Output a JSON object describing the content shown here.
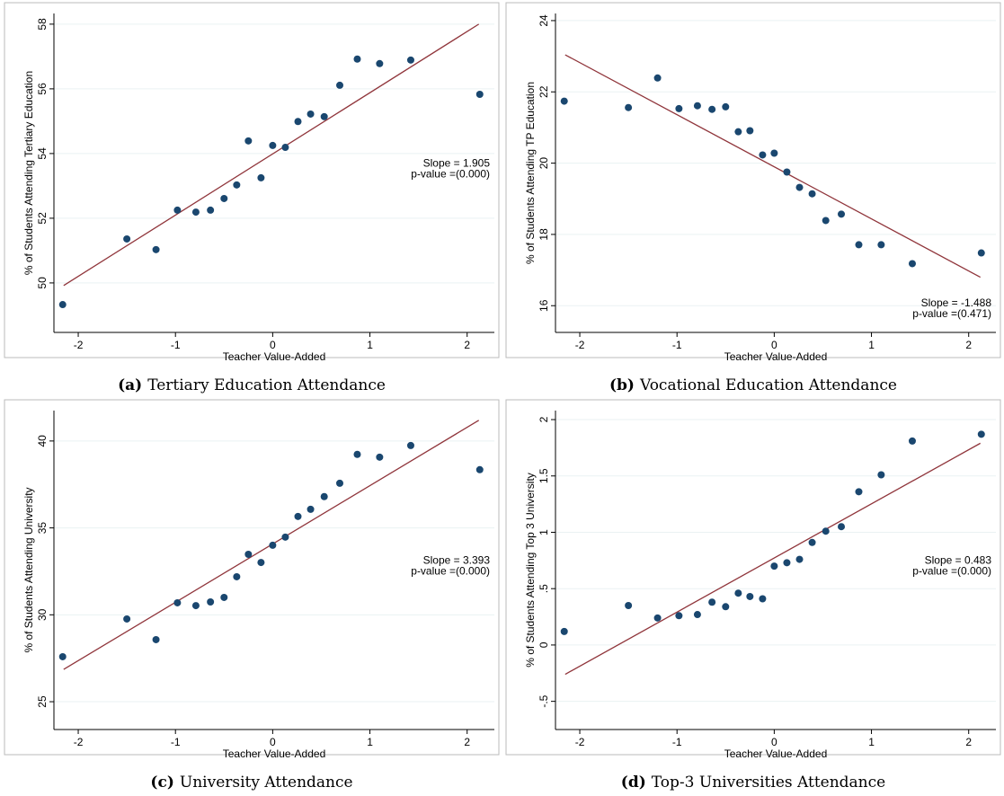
{
  "chart_data": [
    {
      "type": "scatter",
      "caption_label": "(a)",
      "caption": "Tertiary Education Attendance",
      "xlabel": "Teacher Value-Added",
      "ylabel": "% of Students Attending Tertiary Education",
      "x": [
        -2.16,
        -1.5,
        -1.2,
        -0.98,
        -0.79,
        -0.64,
        -0.5,
        -0.37,
        -0.25,
        -0.12,
        0.0,
        0.13,
        0.26,
        0.39,
        0.53,
        0.69,
        0.87,
        1.1,
        1.42,
        2.13
      ],
      "y": [
        49.33,
        51.36,
        51.03,
        52.25,
        52.19,
        52.25,
        52.61,
        53.03,
        54.39,
        53.25,
        54.25,
        54.19,
        54.99,
        55.22,
        55.14,
        56.11,
        56.92,
        56.78,
        56.89,
        55.83
      ],
      "color": "#1a476f",
      "fit_line": {
        "x": [
          -2.15,
          2.12
        ],
        "y": [
          49.92,
          58.0
        ],
        "color": "#90353b"
      },
      "annotations": [
        "Slope = 1.905",
        "p-value =(0.000)"
      ],
      "annotation_position": "middle",
      "xlim": [
        -2.25,
        2.28
      ],
      "ylim": [
        48.47,
        58.33
      ],
      "xticks": [
        -2,
        -1,
        0,
        1,
        2
      ],
      "yticks": [
        50,
        52,
        54,
        56,
        58
      ],
      "grid": true
    },
    {
      "type": "scatter",
      "caption_label": "(b)",
      "caption": "Vocational Education Attendance",
      "xlabel": "Teacher Value-Added",
      "ylabel": "% of Students Attending TP Education",
      "x": [
        -2.16,
        -1.5,
        -1.2,
        -0.98,
        -0.79,
        -0.64,
        -0.5,
        -0.37,
        -0.25,
        -0.12,
        0.0,
        0.13,
        0.26,
        0.39,
        0.53,
        0.69,
        0.87,
        1.1,
        1.42,
        2.13
      ],
      "y": [
        21.74,
        21.56,
        22.39,
        21.53,
        21.61,
        21.51,
        21.58,
        20.88,
        20.91,
        20.23,
        20.28,
        19.75,
        19.32,
        19.14,
        18.39,
        18.57,
        17.71,
        17.71,
        17.18,
        17.48
      ],
      "color": "#1a476f",
      "fit_line": {
        "x": [
          -2.15,
          2.12
        ],
        "y": [
          23.04,
          16.8
        ],
        "color": "#90353b"
      },
      "annotations": [
        "Slope = -1.488",
        "p-value =(0.471)"
      ],
      "annotation_position": "bottom",
      "xlim": [
        -2.25,
        2.28
      ],
      "ylim": [
        15.25,
        24.2
      ],
      "xticks": [
        -2,
        -1,
        0,
        1,
        2
      ],
      "yticks": [
        16,
        18,
        20,
        22,
        24
      ],
      "grid": true
    },
    {
      "type": "scatter",
      "caption_label": "(c)",
      "caption": "University Attendance",
      "xlabel": "Teacher Value-Added",
      "ylabel": "% of Students Attending University",
      "x": [
        -2.16,
        -1.5,
        -1.2,
        -0.98,
        -0.79,
        -0.64,
        -0.5,
        -0.37,
        -0.25,
        -0.12,
        0.0,
        0.13,
        0.26,
        0.39,
        0.53,
        0.69,
        0.87,
        1.1,
        1.42,
        2.13
      ],
      "y": [
        27.59,
        29.76,
        28.57,
        30.69,
        30.53,
        30.74,
        31.0,
        32.19,
        33.48,
        33.01,
        34.0,
        34.47,
        35.66,
        36.07,
        36.8,
        37.57,
        39.23,
        39.07,
        39.74,
        38.35
      ],
      "color": "#1a476f",
      "fit_line": {
        "x": [
          -2.15,
          2.12
        ],
        "y": [
          26.86,
          41.19
        ],
        "color": "#90353b"
      },
      "annotations": [
        "Slope = 3.393",
        "p-value =(0.000)"
      ],
      "annotation_position": "middle",
      "xlim": [
        -2.25,
        2.28
      ],
      "ylim": [
        23.4,
        41.75
      ],
      "xticks": [
        -2,
        -1,
        0,
        1,
        2
      ],
      "yticks": [
        25,
        30,
        35,
        40
      ],
      "grid": true
    },
    {
      "type": "scatter",
      "caption_label": "(d)",
      "caption": "Top-3 Universities Attendance",
      "xlabel": "Teacher Value-Added",
      "ylabel": "% of Students Attending Top 3 University",
      "x": [
        -2.16,
        -1.5,
        -1.2,
        -0.98,
        -0.79,
        -0.64,
        -0.5,
        -0.37,
        -0.25,
        -0.12,
        0.0,
        0.13,
        0.26,
        0.39,
        0.53,
        0.69,
        0.87,
        1.1,
        1.42,
        2.13
      ],
      "y": [
        0.12,
        0.35,
        0.24,
        0.26,
        0.27,
        0.38,
        0.34,
        0.46,
        0.43,
        0.41,
        0.7,
        0.73,
        0.76,
        0.91,
        1.01,
        1.05,
        1.36,
        1.51,
        1.81,
        1.87
      ],
      "color": "#1a476f",
      "fit_line": {
        "x": [
          -2.15,
          2.12
        ],
        "y": [
          -0.26,
          1.79
        ],
        "color": "#90353b"
      },
      "annotations": [
        "Slope = 0.483",
        "p-value =(0.000)"
      ],
      "annotation_position": "middle",
      "xlim": [
        -2.25,
        2.28
      ],
      "ylim": [
        -0.75,
        2.08
      ],
      "xticks": [
        -2,
        -1,
        0,
        1,
        2
      ],
      "yticks": [
        {
          "value": -0.5,
          "label": "-.5"
        },
        0,
        {
          "value": 0.5,
          "label": ".5"
        },
        1,
        {
          "value": 1.5,
          "label": "1.5"
        },
        2
      ],
      "grid": true
    }
  ]
}
